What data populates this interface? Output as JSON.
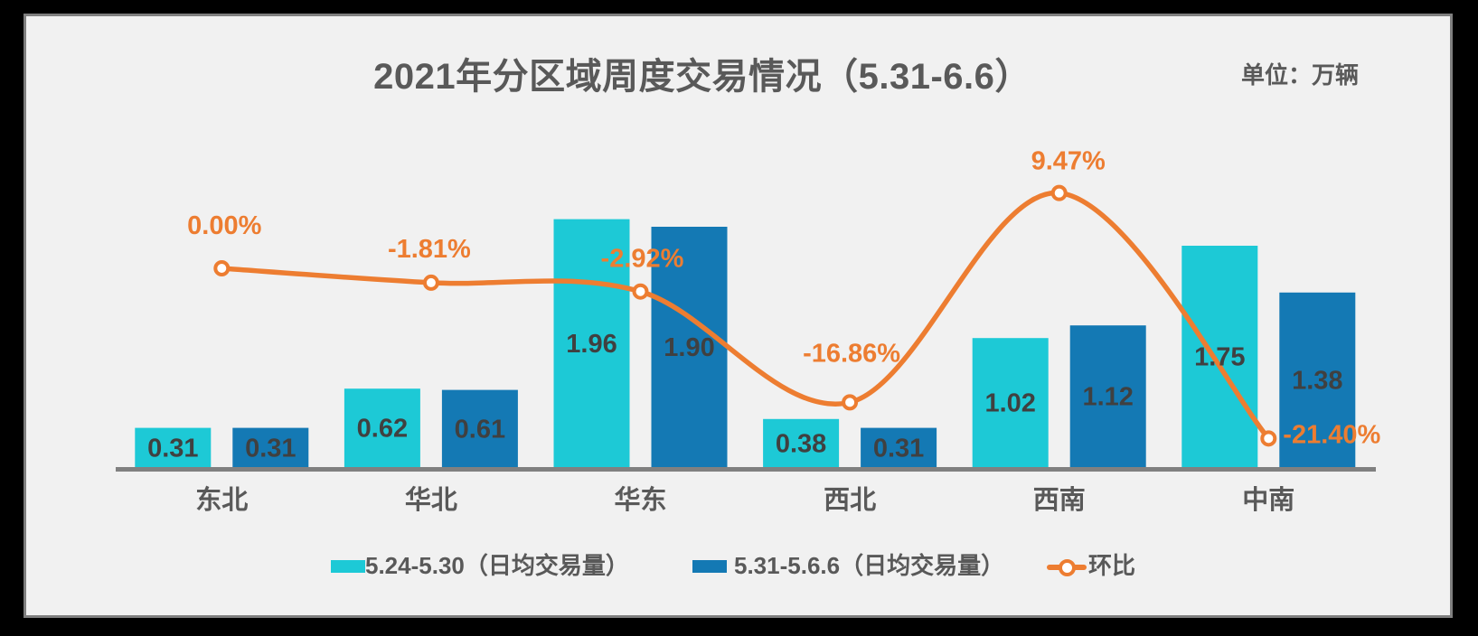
{
  "header": {
    "title": "2021年分区域周度交易情况（5.31-6.6）",
    "unit_label": "单位：万辆"
  },
  "chart_data": {
    "type": "combo-bar-line",
    "title": "2021年分区域周度交易情况（5.31-6.6）",
    "value_unit": "万辆",
    "categories": [
      "东北",
      "华北",
      "华东",
      "西北",
      "西南",
      "中南"
    ],
    "series": [
      {
        "name": "5.24-5.30（日均交易量）",
        "type": "bar",
        "color": "#1DC9D6",
        "values": [
          0.31,
          0.62,
          1.96,
          0.38,
          1.02,
          1.75
        ],
        "labels": [
          "0.31",
          "0.62",
          "1.96",
          "0.38",
          "1.02",
          "1.75"
        ]
      },
      {
        "name": "5.31-5.6.6（日均交易量）",
        "type": "bar",
        "color": "#1479B4",
        "values": [
          0.31,
          0.61,
          1.9,
          0.31,
          1.12,
          1.38
        ],
        "labels": [
          "0.31",
          "0.61",
          "1.90",
          "0.31",
          "1.12",
          "1.38"
        ]
      },
      {
        "name": "环比",
        "type": "line",
        "color": "#ED7D31",
        "unit": "%",
        "values": [
          0.0,
          -1.81,
          -2.92,
          -16.86,
          9.47,
          -21.4
        ],
        "labels": [
          "0.00%",
          "-1.81%",
          "-2.92%",
          "-16.86%",
          "9.47%",
          "-21.40%"
        ]
      }
    ],
    "legend_position": "bottom",
    "grid": false,
    "palette": {
      "panel_background": "#F1F1F1",
      "outer_background": "#000000",
      "panel_border": "#7F7F7F",
      "axis_line": "#808080",
      "title_text": "#595959",
      "value_text": "#404040",
      "marker_fill": "#FFFFFF"
    }
  }
}
